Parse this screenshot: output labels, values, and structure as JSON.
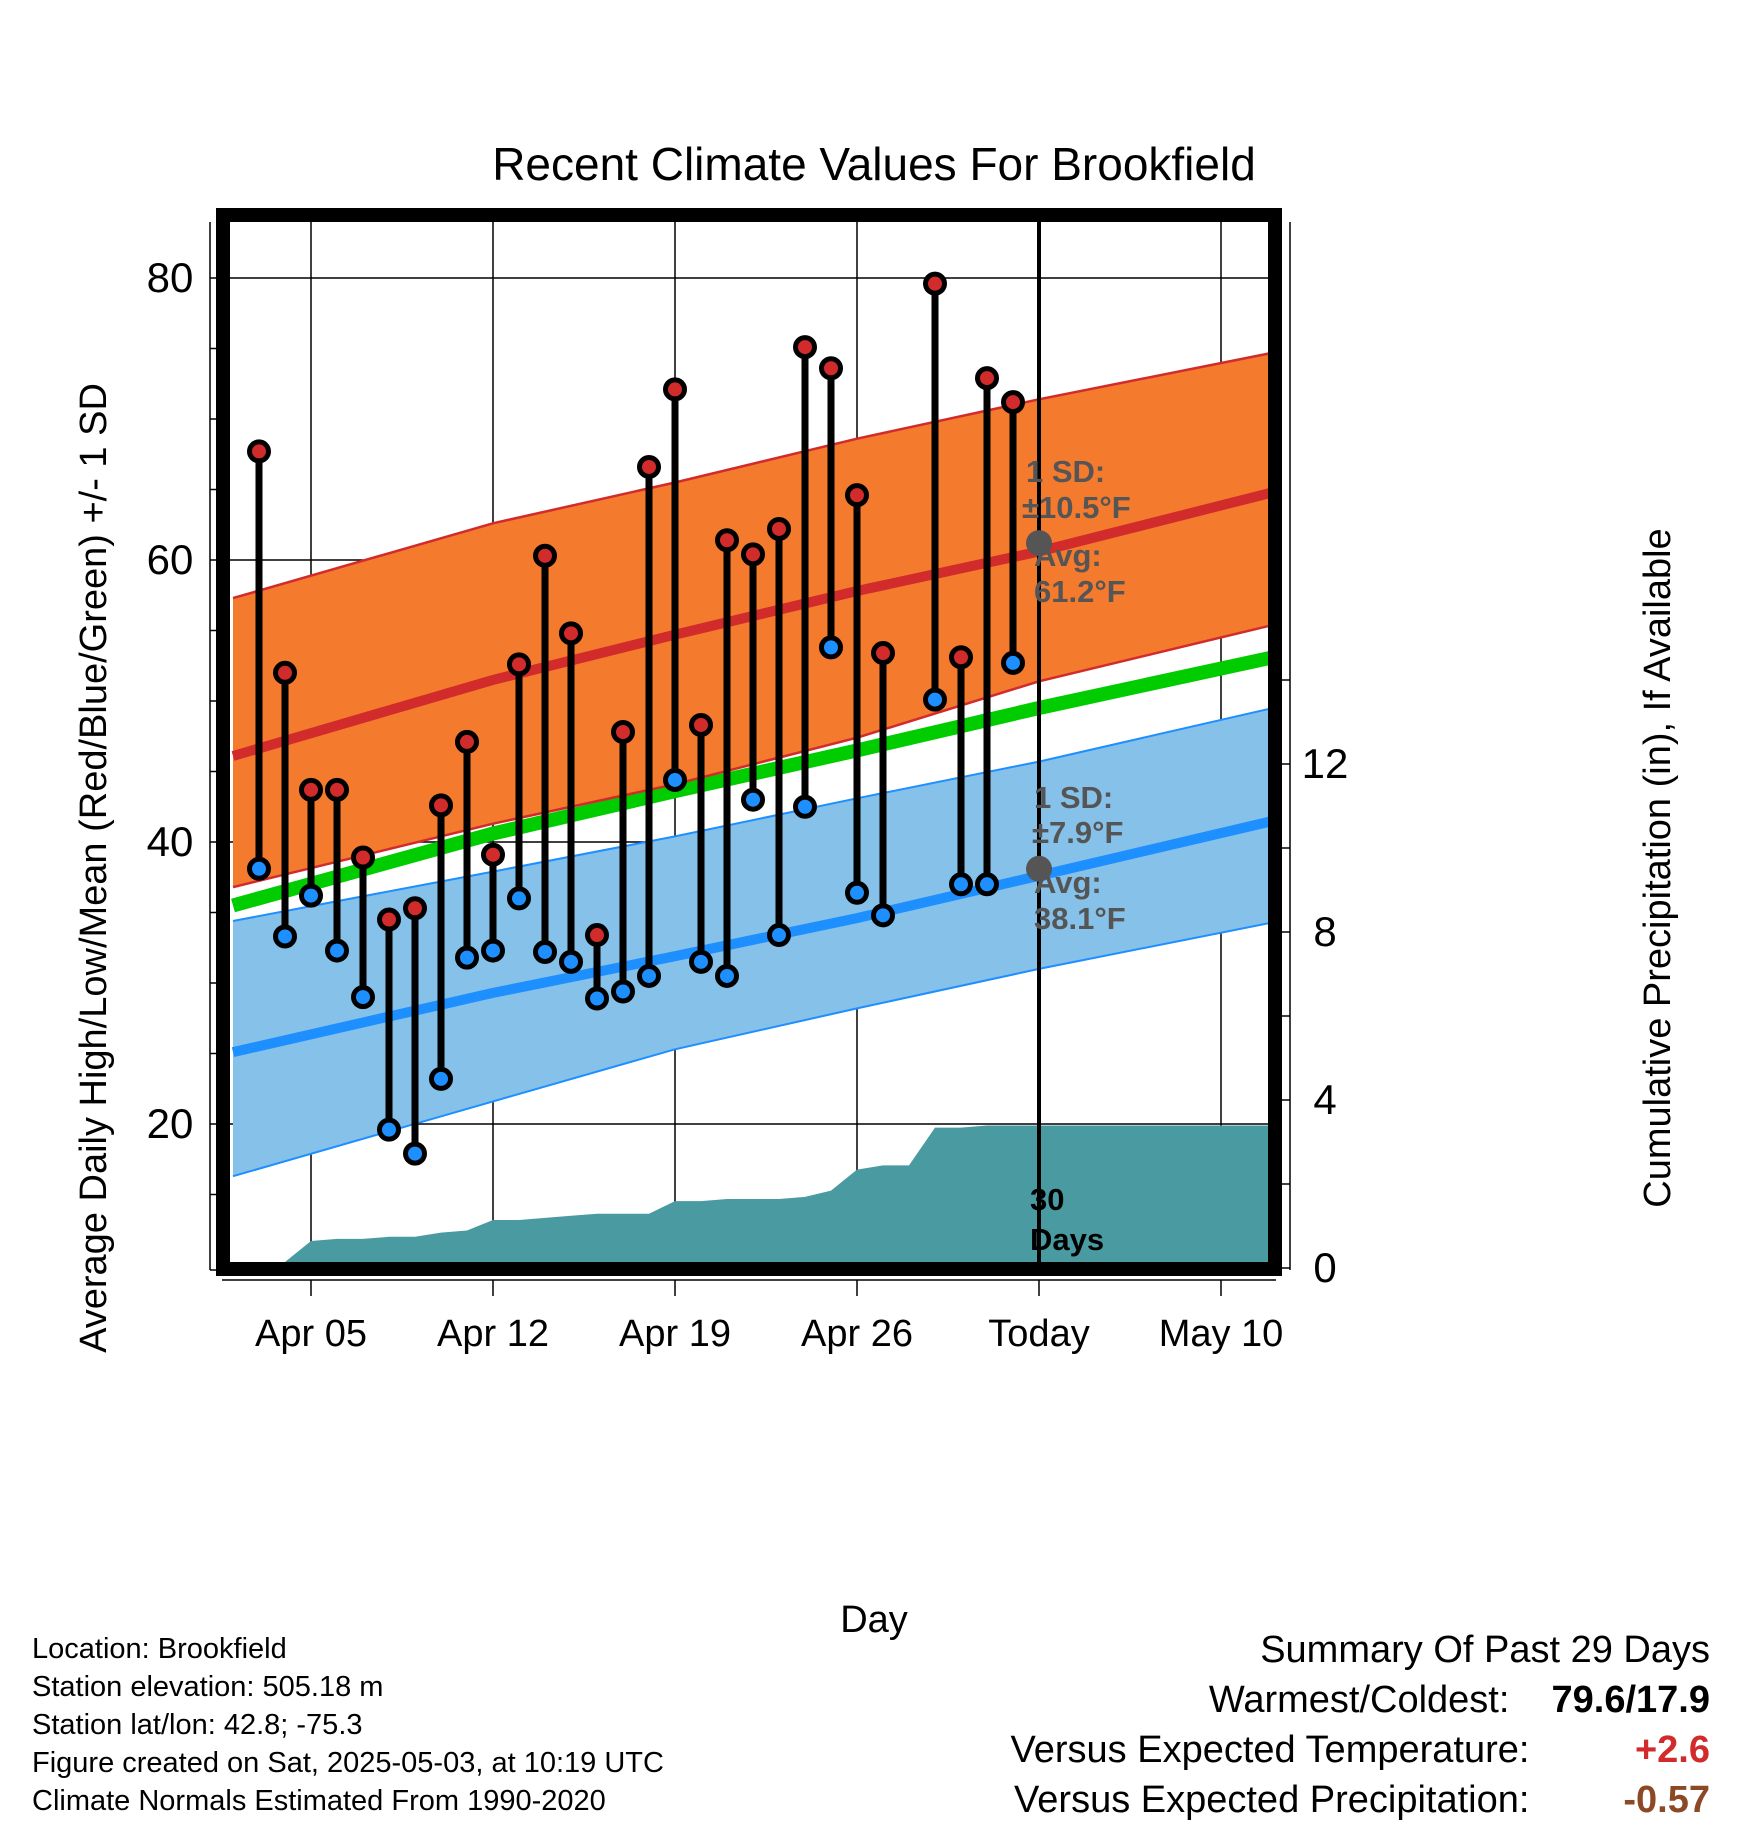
{
  "chart_data": {
    "type": "line",
    "title": "Recent Climate Values For Brookfield",
    "xlabel": "Day",
    "ylabel": "Average Daily High/Low/Mean (Red/Blue/Green) +/- 1 SD",
    "y2label": "Cumulative Precipitation (in), If Available",
    "x_start": "2025-04-02",
    "x_end": "2025-05-12",
    "x_ticks": [
      {
        "date": "2025-04-05",
        "label": "Apr 05"
      },
      {
        "date": "2025-04-12",
        "label": "Apr 12"
      },
      {
        "date": "2025-04-19",
        "label": "Apr 19"
      },
      {
        "date": "2025-04-26",
        "label": "Apr 26"
      },
      {
        "date": "2025-05-03",
        "label": "Today"
      },
      {
        "date": "2025-05-10",
        "label": "May 10"
      }
    ],
    "ylim": [
      10,
      85
    ],
    "y_ticks": [
      20,
      40,
      60,
      80
    ],
    "y2lim": [
      0,
      20
    ],
    "y2_ticks": [
      0,
      4,
      8,
      12
    ],
    "grid": true,
    "today": "2025-05-03",
    "today_label": "30 Days",
    "normals": {
      "dates": [
        "2025-04-02",
        "2025-04-12",
        "2025-04-19",
        "2025-04-26",
        "2025-05-03",
        "2025-05-12"
      ],
      "high_mean": [
        46.1,
        51.5,
        54.7,
        57.8,
        60.6,
        64.8
      ],
      "high_upper": [
        57.3,
        62.6,
        65.5,
        68.6,
        71.4,
        74.7
      ],
      "high_lower": [
        36.8,
        41.3,
        44.1,
        47.4,
        51.4,
        55.4
      ],
      "low_mean": [
        25.1,
        29.3,
        31.9,
        34.6,
        37.6,
        41.5
      ],
      "low_upper": [
        34.4,
        37.9,
        40.4,
        43.1,
        45.7,
        49.5
      ],
      "low_lower": [
        16.3,
        21.6,
        25.3,
        28.2,
        31.0,
        34.3
      ],
      "mean": [
        35.5,
        40.6,
        43.6,
        46.5,
        49.5,
        53.1
      ]
    },
    "high_annotation": {
      "sd": "1 SD:",
      "sd_value": "±10.5°F",
      "avg": "Avg:",
      "avg_value": "61.2°F",
      "value": 61.2
    },
    "low_annotation": {
      "sd": "1 SD:",
      "sd_value": "±7.9°F",
      "avg": "Avg:",
      "avg_value": "38.1°F",
      "value": 38.1
    },
    "observed": {
      "dates": [
        "2025-04-03",
        "2025-04-04",
        "2025-04-05",
        "2025-04-06",
        "2025-04-07",
        "2025-04-08",
        "2025-04-09",
        "2025-04-10",
        "2025-04-11",
        "2025-04-12",
        "2025-04-13",
        "2025-04-14",
        "2025-04-15",
        "2025-04-16",
        "2025-04-17",
        "2025-04-18",
        "2025-04-19",
        "2025-04-20",
        "2025-04-21",
        "2025-04-22",
        "2025-04-23",
        "2025-04-24",
        "2025-04-25",
        "2025-04-26",
        "2025-04-27",
        "2025-04-29",
        "2025-04-30",
        "2025-05-01",
        "2025-05-02"
      ],
      "high": [
        67.7,
        52.0,
        43.7,
        43.7,
        38.9,
        34.5,
        35.3,
        42.6,
        47.1,
        39.1,
        52.6,
        60.3,
        54.8,
        33.4,
        47.8,
        66.6,
        72.1,
        48.3,
        61.4,
        60.4,
        62.2,
        75.1,
        73.6,
        64.6,
        53.4,
        79.6,
        53.1,
        72.9,
        71.2
      ],
      "low": [
        38.1,
        33.3,
        36.2,
        32.3,
        29.0,
        19.6,
        17.9,
        23.2,
        31.8,
        32.3,
        36.0,
        32.2,
        31.5,
        28.9,
        29.4,
        30.5,
        44.4,
        31.5,
        30.5,
        43.0,
        33.4,
        42.5,
        53.8,
        36.4,
        34.8,
        50.1,
        37.0,
        37.0,
        52.7
      ]
    },
    "precipitation": {
      "dates": [
        "2025-04-04",
        "2025-04-05",
        "2025-04-06",
        "2025-04-07",
        "2025-04-08",
        "2025-04-09",
        "2025-04-10",
        "2025-04-11",
        "2025-04-12",
        "2025-04-13",
        "2025-04-14",
        "2025-04-15",
        "2025-04-16",
        "2025-04-17",
        "2025-04-18",
        "2025-04-19",
        "2025-04-20",
        "2025-04-21",
        "2025-04-22",
        "2025-04-23",
        "2025-04-24",
        "2025-04-25",
        "2025-04-26",
        "2025-04-27",
        "2025-04-28",
        "2025-04-29",
        "2025-04-30",
        "2025-05-01",
        "2025-05-02",
        "2025-05-03",
        "2025-05-12"
      ],
      "values": [
        0.0,
        0.5,
        0.55,
        0.55,
        0.6,
        0.6,
        0.7,
        0.75,
        1.0,
        1.0,
        1.05,
        1.1,
        1.15,
        1.15,
        1.15,
        1.45,
        1.45,
        1.5,
        1.5,
        1.5,
        1.55,
        1.7,
        2.2,
        2.3,
        2.3,
        3.2,
        3.2,
        3.25,
        3.25,
        3.25,
        3.25
      ]
    },
    "colors": {
      "high_band": "#f47a2e",
      "high_mean": "#d22b2b",
      "low_band": "#85c1e9",
      "low_mean": "#1e8fff",
      "low_edge": "#1e8fff",
      "mean_line": "#00cc00",
      "high_marker": "#d22b2b",
      "low_marker": "#1e8fff",
      "precip": "#4a9aa2",
      "annotation": "#555555"
    }
  },
  "info": {
    "location": "Location: Brookfield",
    "elevation": "Station elevation: 505.18 m",
    "latlon": "Station lat/lon: 42.8; -75.3",
    "created": "Figure created on Sat, 2025-05-03, at 10:19 UTC",
    "normals": "Climate Normals Estimated From 1990-2020"
  },
  "summary": {
    "title": "Summary Of Past 29 Days",
    "warm_label": "Warmest/Coldest:",
    "warm_value": "79.6/17.9",
    "temp_label": "Versus Expected Temperature:",
    "temp_value": "+2.6",
    "prec_label": "Versus Expected Precipitation:",
    "prec_value": "-0.57"
  }
}
